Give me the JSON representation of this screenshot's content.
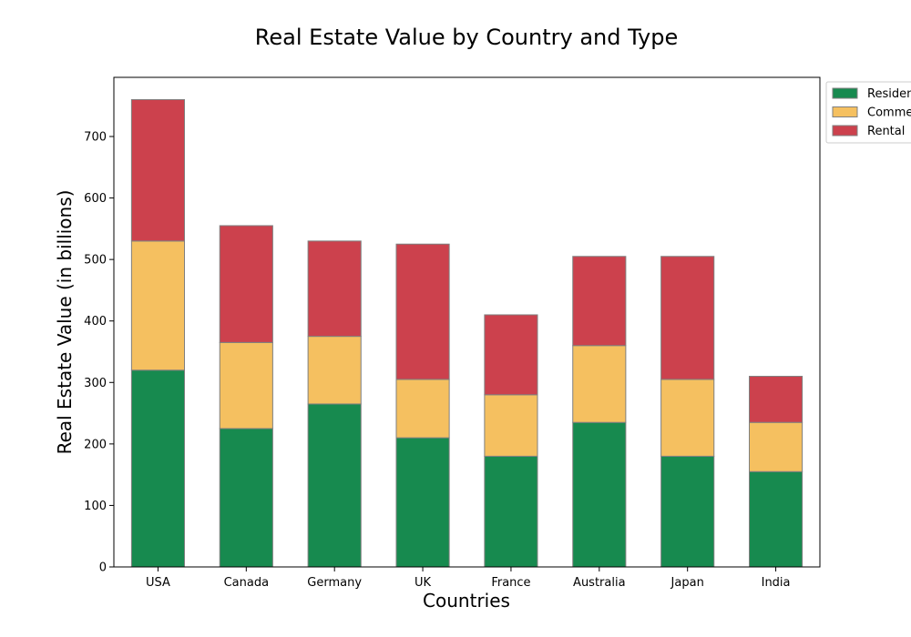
{
  "chart_data": {
    "type": "bar",
    "stacked": true,
    "title": "Real Estate Value by Country and Type",
    "xlabel": "Countries",
    "ylabel": "Real Estate Value (in billions)",
    "categories": [
      "USA",
      "Canada",
      "Germany",
      "UK",
      "France",
      "Australia",
      "Japan",
      "India"
    ],
    "series": [
      {
        "name": "Residential",
        "color": "#178a4f",
        "values": [
          320,
          225,
          265,
          210,
          180,
          235,
          180,
          155
        ]
      },
      {
        "name": "Commercial",
        "color": "#f5c060",
        "values": [
          210,
          140,
          110,
          95,
          100,
          125,
          125,
          80
        ]
      },
      {
        "name": "Rental",
        "color": "#cc414d",
        "values": [
          230,
          190,
          155,
          220,
          130,
          145,
          200,
          75
        ]
      }
    ],
    "ylim": [
      0,
      800
    ],
    "yticks": [
      0,
      100,
      200,
      300,
      400,
      500,
      600,
      700
    ],
    "grid": false,
    "legend_position": "outside-top-right"
  }
}
